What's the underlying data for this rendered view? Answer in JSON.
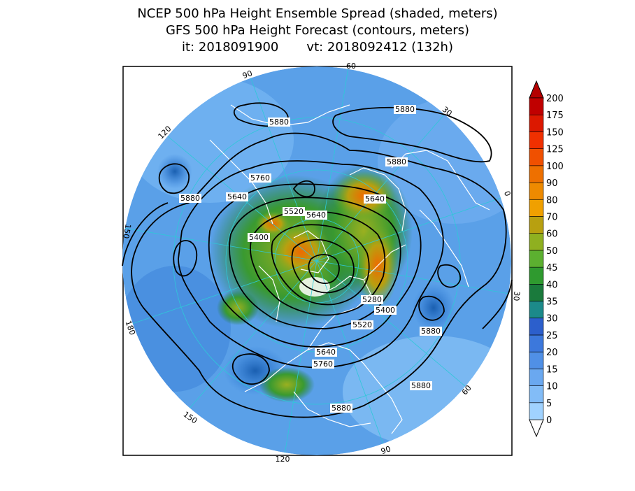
{
  "titles": {
    "line1": "NCEP 500 hPa Height Ensemble Spread (shaded, meters)",
    "line2": "GFS 500 hPa Height Forecast (contours, meters)",
    "line3": "it: 2018091900       vt: 2018092412 (132h)"
  },
  "longitude_labels": [
    "60",
    "30",
    "0",
    "30",
    "60",
    "90",
    "120",
    "150",
    "180",
    "150",
    "120",
    "90"
  ],
  "contour_labels": [
    "5880",
    "5880",
    "5880",
    "5880",
    "5880",
    "5880",
    "5880",
    "5880",
    "5760",
    "5760",
    "5640",
    "5640",
    "5640",
    "5640",
    "5520",
    "5520",
    "5400",
    "5400",
    "5280"
  ],
  "colorbar": {
    "levels": [
      "0",
      "5",
      "10",
      "15",
      "20",
      "25",
      "30",
      "35",
      "40",
      "45",
      "50",
      "60",
      "70",
      "80",
      "90",
      "100",
      "125",
      "150",
      "175",
      "200"
    ],
    "colors": [
      "#a0d2ff",
      "#82bcf7",
      "#6aa8f0",
      "#5090e6",
      "#3c78dc",
      "#2c5fcc",
      "#1c8a8a",
      "#1a7a3c",
      "#2f9a2f",
      "#5cb030",
      "#8fb020",
      "#b8a010",
      "#f0a000",
      "#ee8a00",
      "#ee7000",
      "#f05000",
      "#f03000",
      "#dc1800",
      "#c00000"
    ],
    "under_color": "#ffffff",
    "over_color": "#b40000"
  },
  "colors": {
    "ocean_spread": "#5aa0e8",
    "coast": "#ffffff",
    "contour": "#000000",
    "graticule": "#2ec8d8"
  }
}
